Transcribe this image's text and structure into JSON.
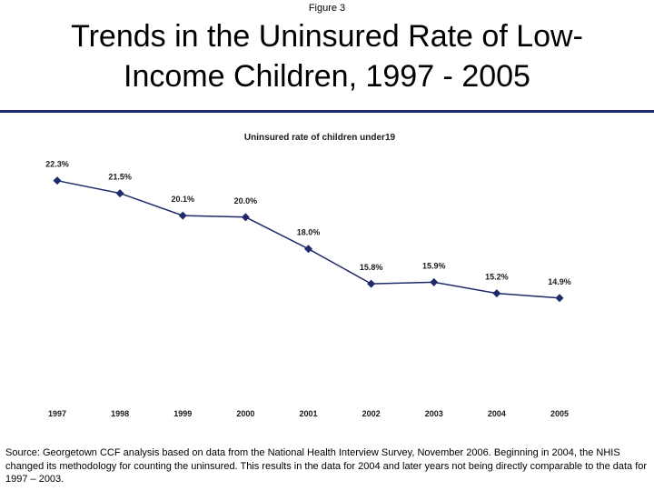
{
  "figure_label": "Figure 3",
  "title": "Trends in the Uninsured Rate of Low-Income Children, 1997 - 2005",
  "title_lines": [
    "Trends in the Uninsured Rate of Low-",
    "Income Children, 1997 - 2005"
  ],
  "source_note": "Source: Georgetown CCF analysis based on data from the National Health Interview Survey, November 2006.  Beginning in 2004, the NHIS changed its methodology for counting the uninsured.  This results in the data for 2004 and later years not being directly comparable to the data for 1997 – 2003.",
  "colors": {
    "rule": "#1f2a6b",
    "series": "#1f2a6b"
  },
  "chart_data": {
    "type": "line",
    "title": "Uninsured rate of children under19",
    "categories": [
      "1997",
      "1998",
      "1999",
      "2000",
      "2001",
      "2002",
      "2003",
      "2004",
      "2005"
    ],
    "series": [
      {
        "values": [
          22.3,
          21.5,
          20.1,
          20.0,
          18.0,
          15.8,
          15.9,
          15.2,
          14.9
        ],
        "labels": [
          "22.3%",
          "21.5%",
          "20.1%",
          "20.0%",
          "18.0%",
          "15.8%",
          "15.9%",
          "15.2%",
          "14.9%"
        ],
        "marker": "diamond"
      }
    ],
    "grid": false,
    "legend": "none"
  }
}
